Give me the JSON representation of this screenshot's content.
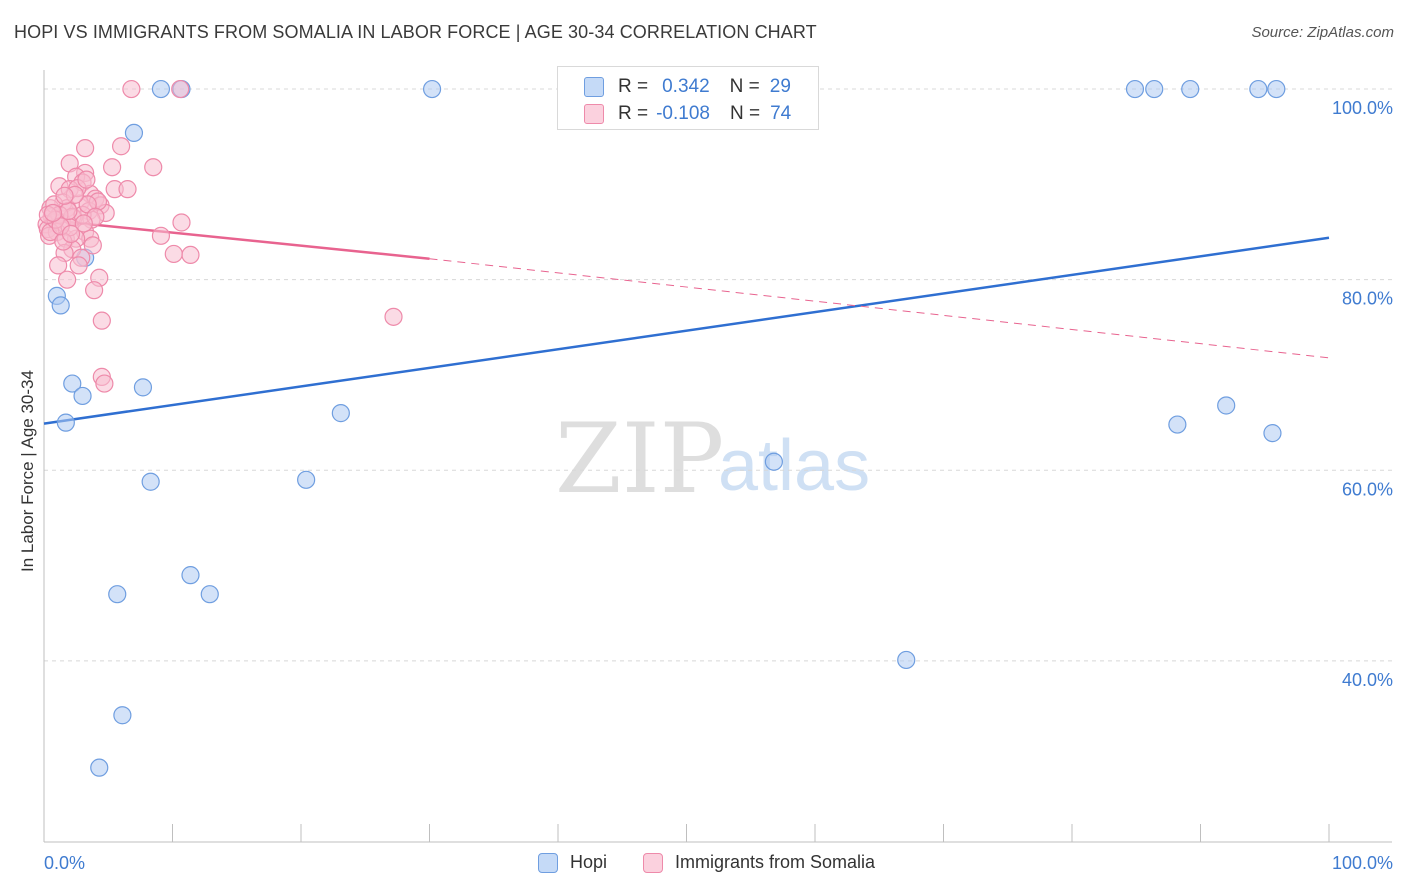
{
  "title": "HOPI VS IMMIGRANTS FROM SOMALIA IN LABOR FORCE | AGE 30-34 CORRELATION CHART",
  "source": "Source: ZipAtlas.com",
  "watermark": {
    "zip": "ZIP",
    "atlas": "atlas"
  },
  "colors": {
    "hopi_fill": "#aecbf3",
    "hopi_stroke": "#6f9ee0",
    "hopi_line": "#2f6fd1",
    "somalia_fill": "#f7bdd0",
    "somalia_stroke": "#ee8aaa",
    "somalia_line": "#e8638f",
    "axis_label": "#3f7bd0",
    "grid": "#d8d8d8"
  },
  "stats": {
    "rows": [
      {
        "r_label": "R =",
        "r_value": "0.342",
        "n_label": "N =",
        "n_value": "29"
      },
      {
        "r_label": "R =",
        "r_value": "-0.108",
        "n_label": "N =",
        "n_value": "74"
      }
    ]
  },
  "legend": {
    "hopi": "Hopi",
    "somalia": "Immigrants from Somalia"
  },
  "chart_data": {
    "type": "scatter",
    "title": "HOPI VS IMMIGRANTS FROM SOMALIA IN LABOR FORCE | AGE 30-34 CORRELATION CHART",
    "xlabel": "",
    "ylabel": "In Labor Force | Age 30-34",
    "xlim": [
      0,
      100
    ],
    "ylim": [
      21,
      102
    ],
    "x_tick_labels": [
      "0.0%",
      "100.0%"
    ],
    "y_ticks": [
      40,
      60,
      80,
      100
    ],
    "y_tick_labels": [
      "40.0%",
      "60.0%",
      "80.0%",
      "100.0%"
    ],
    "grid": true,
    "series": [
      {
        "name": "Hopi",
        "points": [
          [
            9.1,
            100
          ],
          [
            10.7,
            100
          ],
          [
            30.2,
            100
          ],
          [
            84.9,
            100
          ],
          [
            86.4,
            100
          ],
          [
            89.2,
            100
          ],
          [
            94.5,
            100
          ],
          [
            95.9,
            100
          ],
          [
            7.0,
            95.4
          ],
          [
            3.2,
            82.3
          ],
          [
            1.0,
            78.3
          ],
          [
            1.3,
            77.3
          ],
          [
            2.2,
            69.1
          ],
          [
            3.0,
            67.8
          ],
          [
            7.7,
            68.7
          ],
          [
            1.7,
            65.0
          ],
          [
            23.1,
            66.0
          ],
          [
            8.3,
            58.8
          ],
          [
            20.4,
            59.0
          ],
          [
            56.8,
            60.9
          ],
          [
            88.2,
            64.8
          ],
          [
            92.0,
            66.8
          ],
          [
            95.6,
            63.9
          ],
          [
            5.7,
            47.0
          ],
          [
            12.9,
            47.0
          ],
          [
            11.4,
            49.0
          ],
          [
            67.1,
            40.1
          ],
          [
            6.1,
            34.3
          ],
          [
            4.3,
            28.8
          ]
        ]
      },
      {
        "name": "Immigrants from Somalia",
        "points": [
          [
            6.8,
            100
          ],
          [
            10.6,
            100
          ],
          [
            6.0,
            94.0
          ],
          [
            3.2,
            93.8
          ],
          [
            2.0,
            92.2
          ],
          [
            5.3,
            91.8
          ],
          [
            8.5,
            91.8
          ],
          [
            3.2,
            91.2
          ],
          [
            2.5,
            90.8
          ],
          [
            3.0,
            90.2
          ],
          [
            1.2,
            89.8
          ],
          [
            2.0,
            89.5
          ],
          [
            5.5,
            89.5
          ],
          [
            6.5,
            89.5
          ],
          [
            3.6,
            89.0
          ],
          [
            4.0,
            88.5
          ],
          [
            1.5,
            88.1
          ],
          [
            2.8,
            88.0
          ],
          [
            4.4,
            87.8
          ],
          [
            0.5,
            87.5
          ],
          [
            1.8,
            87.5
          ],
          [
            3.5,
            87.2
          ],
          [
            4.8,
            87.0
          ],
          [
            0.6,
            86.6
          ],
          [
            2.3,
            86.5
          ],
          [
            3.7,
            86.3
          ],
          [
            0.8,
            86.0
          ],
          [
            1.4,
            86.0
          ],
          [
            0.2,
            85.8
          ],
          [
            0.3,
            85.3
          ],
          [
            1.0,
            85.0
          ],
          [
            2.2,
            86.6
          ],
          [
            10.7,
            86.0
          ],
          [
            3.2,
            85.0
          ],
          [
            0.4,
            84.6
          ],
          [
            1.7,
            84.3
          ],
          [
            3.6,
            84.3
          ],
          [
            9.1,
            84.6
          ],
          [
            2.5,
            84.3
          ],
          [
            3.8,
            83.6
          ],
          [
            2.2,
            83.2
          ],
          [
            1.6,
            82.8
          ],
          [
            10.1,
            82.7
          ],
          [
            11.4,
            82.6
          ],
          [
            2.9,
            82.3
          ],
          [
            1.1,
            81.5
          ],
          [
            2.7,
            81.5
          ],
          [
            4.3,
            80.2
          ],
          [
            1.8,
            80.0
          ],
          [
            3.9,
            78.9
          ],
          [
            27.2,
            76.1
          ],
          [
            4.5,
            75.7
          ],
          [
            4.5,
            69.8
          ],
          [
            4.7,
            69.1
          ],
          [
            0.8,
            87.9
          ],
          [
            1.2,
            86.8
          ],
          [
            2.0,
            85.5
          ],
          [
            3.0,
            86.8
          ],
          [
            0.5,
            85.0
          ],
          [
            1.5,
            84.0
          ],
          [
            4.2,
            88.2
          ],
          [
            2.6,
            89.6
          ],
          [
            0.9,
            86.3
          ],
          [
            1.9,
            87.2
          ],
          [
            3.4,
            87.9
          ],
          [
            0.3,
            86.8
          ],
          [
            2.4,
            88.9
          ],
          [
            1.3,
            85.6
          ],
          [
            4.0,
            86.6
          ],
          [
            3.1,
            85.9
          ],
          [
            0.7,
            87.0
          ],
          [
            2.1,
            84.8
          ],
          [
            1.6,
            88.8
          ],
          [
            3.3,
            90.5
          ]
        ]
      }
    ],
    "trendlines": [
      {
        "series": "Hopi",
        "x": [
          0,
          100
        ],
        "y": [
          64.9,
          84.4
        ],
        "style": "solid"
      },
      {
        "series": "Immigrants from Somalia",
        "x": [
          0,
          30
        ],
        "y": [
          86.3,
          82.2
        ],
        "style": "solid"
      },
      {
        "series": "Immigrants from Somalia",
        "x": [
          30,
          100
        ],
        "y": [
          82.2,
          71.8
        ],
        "style": "dashed"
      }
    ],
    "legend_position": "bottom-center"
  }
}
